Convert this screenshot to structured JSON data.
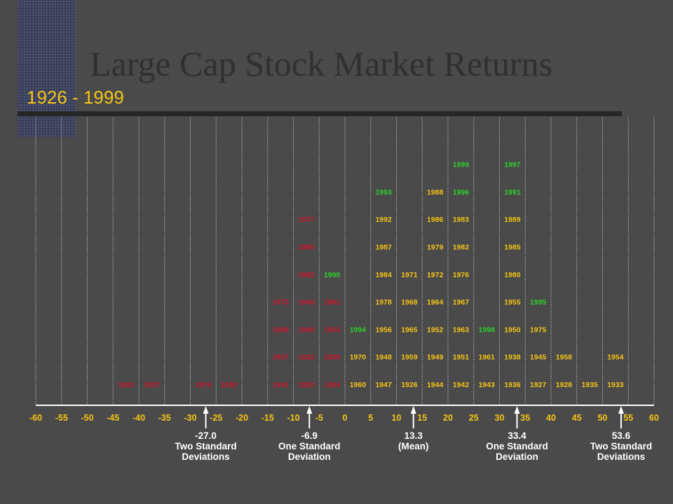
{
  "title": "Large Cap Stock Market Returns",
  "subtitle": "1926 - 1999",
  "colors": {
    "background": "#4a4a4a",
    "title": "#303030",
    "subtitle": "#f5c416",
    "negative": "#cc1530",
    "positive": "#f5c416",
    "high": "#2cd02c",
    "axis": "#ffffff",
    "tick_label": "#f5c416",
    "annotation": "#ffffff"
  },
  "chart_data": {
    "type": "scatter",
    "title": "Large Cap Stock Market Returns",
    "subtitle": "1926 - 1999",
    "xlim": [
      -60,
      60
    ],
    "x_ticks": [
      -60,
      -55,
      -50,
      -45,
      -40,
      -35,
      -30,
      -25,
      -20,
      -15,
      -10,
      -5,
      0,
      5,
      10,
      15,
      20,
      25,
      30,
      35,
      40,
      45,
      50,
      55,
      60
    ],
    "grid": true,
    "bins": [
      {
        "x": -42.5,
        "years": [
          "1931"
        ],
        "color": "negative"
      },
      {
        "x": -37.5,
        "years": [
          "1937"
        ],
        "color": "negative"
      },
      {
        "x": -27.5,
        "years": [
          "1974"
        ],
        "color": "negative"
      },
      {
        "x": -22.5,
        "years": [
          "1930"
        ],
        "color": "negative"
      },
      {
        "x": -12.5,
        "years": [
          "1941",
          "1957",
          "1966",
          "1973"
        ],
        "color": "negative"
      },
      {
        "x": -7.5,
        "years": [
          "1929",
          "1932",
          "1940",
          "1946",
          "1962",
          "1969",
          "1977"
        ],
        "color": "negative"
      },
      {
        "x": -2.5,
        "years": [
          "1934",
          "1939",
          "1953",
          "1981"
        ],
        "color": "negative"
      },
      {
        "x": -2.5,
        "years": [
          "1990"
        ],
        "color": "high"
      },
      {
        "x": 2.5,
        "years": [
          "1960",
          "1970"
        ],
        "color": "positive"
      },
      {
        "x": 2.5,
        "years": [
          "1994"
        ],
        "color": "high"
      },
      {
        "x": 7.5,
        "years": [
          "1947",
          "1948",
          "1956",
          "1978",
          "1984",
          "1987",
          "1992"
        ],
        "color": "positive"
      },
      {
        "x": 7.5,
        "years": [
          "1993"
        ],
        "color": "high"
      },
      {
        "x": 12.5,
        "years": [
          "1926",
          "1959",
          "1965",
          "1968",
          "1971"
        ],
        "color": "positive"
      },
      {
        "x": 17.5,
        "years": [
          "1944",
          "1949",
          "1952",
          "1964",
          "1972",
          "1979",
          "1986",
          "1988"
        ],
        "color": "positive"
      },
      {
        "x": 22.5,
        "years": [
          "1942",
          "1951",
          "1963",
          "1967",
          "1976",
          "1982",
          "1983"
        ],
        "color": "positive"
      },
      {
        "x": 22.5,
        "years": [
          "1996",
          "1999"
        ],
        "color": "high"
      },
      {
        "x": 27.5,
        "years": [
          "1943",
          "1961"
        ],
        "color": "positive"
      },
      {
        "x": 27.5,
        "years": [
          "1998"
        ],
        "color": "high"
      },
      {
        "x": 32.5,
        "years": [
          "1936",
          "1938",
          "1950",
          "1955",
          "1980",
          "1985",
          "1989"
        ],
        "color": "positive"
      },
      {
        "x": 32.5,
        "years": [
          "1991",
          "1997"
        ],
        "color": "high"
      },
      {
        "x": 37.5,
        "years": [
          "1927",
          "1945",
          "1975"
        ],
        "color": "positive"
      },
      {
        "x": 37.5,
        "years": [
          "1995"
        ],
        "color": "high"
      },
      {
        "x": 42.5,
        "years": [
          "1928",
          "1958"
        ],
        "color": "positive"
      },
      {
        "x": 47.5,
        "years": [
          "1935"
        ],
        "color": "positive"
      },
      {
        "x": 52.5,
        "years": [
          "1933",
          "1954"
        ],
        "color": "positive"
      }
    ],
    "annotations": [
      {
        "x": -27.0,
        "value": "-27.0",
        "lines": [
          "Two Standard",
          "Deviations"
        ]
      },
      {
        "x": -6.9,
        "value": "-6.9",
        "lines": [
          "One Standard",
          "Deviation"
        ]
      },
      {
        "x": 13.3,
        "value": "13.3",
        "lines": [
          "(Mean)"
        ]
      },
      {
        "x": 33.4,
        "value": "33.4",
        "lines": [
          "One Standard",
          "Deviation"
        ]
      },
      {
        "x": 53.6,
        "value": "53.6",
        "lines": [
          "Two Standard",
          "Deviations"
        ]
      }
    ]
  }
}
